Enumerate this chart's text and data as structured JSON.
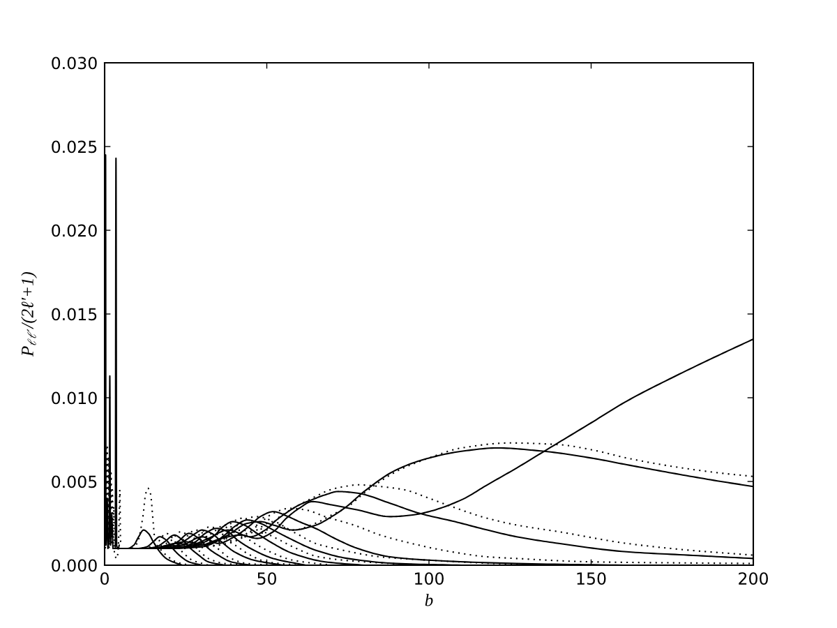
{
  "chart_data": {
    "type": "line",
    "xlabel": "b",
    "ylabel": "P$_{ℓℓ′}$/(2ℓ′+1)",
    "xlim": [
      0,
      200
    ],
    "ylim": [
      0,
      0.03
    ],
    "xticks": [
      0,
      50,
      100,
      150,
      200
    ],
    "yticks": [
      {
        "value": 0,
        "label": "0.000"
      },
      {
        "value": 0.005,
        "label": "0.005"
      },
      {
        "value": 0.01,
        "label": "0.010"
      },
      {
        "value": 0.015,
        "label": "0.015"
      },
      {
        "value": 0.02,
        "label": "0.020"
      },
      {
        "value": 0.025,
        "label": "0.025"
      },
      {
        "value": 0.03,
        "label": "0.030"
      }
    ],
    "series": [
      {
        "color": "#000000",
        "line_style": "solid",
        "x": [
          0.1,
          0.2,
          0.3,
          0.4,
          0.8,
          1.0,
          1.4,
          1.6,
          1.8,
          2.2,
          2.6,
          3.3,
          3.5,
          3.7,
          4.2,
          4.5
        ],
        "values": [
          0.0087,
          0.0015,
          0.0245,
          0.0012,
          0.004,
          0.001,
          0.002,
          0.0113,
          0.0012,
          0.003,
          0.001,
          0.001,
          0.0243,
          0.0012,
          0.001,
          0.0012
        ]
      },
      {
        "color": "#000000",
        "line_style": "dotted",
        "x": [
          0.2,
          0.4,
          0.6,
          0.8,
          1.0,
          1.2,
          1.4,
          1.6,
          1.8,
          2.0,
          2.2,
          2.4,
          2.6,
          2.8,
          3.0,
          3.8,
          4.2,
          4.5,
          4.7,
          4.9,
          5.2
        ],
        "values": [
          0.001,
          0.007,
          0.002,
          0.0072,
          0.0015,
          0.0065,
          0.001,
          0.006,
          0.0015,
          0.0055,
          0.0012,
          0.0045,
          0.001,
          0.0035,
          0.0008,
          0.0004,
          0.001,
          0.003,
          0.0045,
          0.0015,
          0.0012
        ]
      },
      {
        "color": "#000000",
        "line_style": "solid",
        "x": [
          3,
          7,
          9,
          10.5,
          12,
          13.5,
          15,
          17,
          19,
          21,
          24
        ],
        "values": [
          0.001,
          0.001,
          0.0012,
          0.0017,
          0.0021,
          0.0019,
          0.0014,
          0.0008,
          0.0004,
          0.0002,
          0.0
        ]
      },
      {
        "color": "#000000",
        "line_style": "solid",
        "x": [
          3,
          10,
          13,
          15,
          17,
          19,
          21,
          23,
          26,
          30
        ],
        "values": [
          0.001,
          0.001,
          0.0011,
          0.0014,
          0.0017,
          0.0015,
          0.001,
          0.0006,
          0.0002,
          0.0
        ]
      },
      {
        "color": "#000000",
        "line_style": "solid",
        "x": [
          3,
          12,
          16,
          18.5,
          21.5,
          24,
          26.5,
          29,
          32,
          37
        ],
        "values": [
          0.001,
          0.001,
          0.0011,
          0.0014,
          0.0018,
          0.0015,
          0.001,
          0.0006,
          0.0002,
          0.0
        ]
      },
      {
        "color": "#000000",
        "line_style": "solid",
        "x": [
          3,
          15,
          19,
          22.5,
          26,
          29,
          32,
          35,
          39,
          45
        ],
        "values": [
          0.001,
          0.001,
          0.0011,
          0.0014,
          0.0019,
          0.0016,
          0.001,
          0.0006,
          0.0002,
          0.0
        ]
      },
      {
        "color": "#000000",
        "line_style": "solid",
        "x": [
          3,
          15,
          21,
          25,
          28,
          30,
          33,
          36,
          40,
          46,
          55
        ],
        "values": [
          0.001,
          0.001,
          0.0011,
          0.0015,
          0.0019,
          0.0021,
          0.0019,
          0.0014,
          0.0008,
          0.0003,
          0.0
        ]
      },
      {
        "color": "#000000",
        "line_style": "solid",
        "x": [
          3,
          15,
          20,
          24,
          28,
          31,
          34.5,
          38,
          41,
          45,
          52,
          62
        ],
        "values": [
          0.001,
          0.001,
          0.0012,
          0.0011,
          0.0014,
          0.0019,
          0.0022,
          0.002,
          0.0015,
          0.001,
          0.0004,
          0.0
        ]
      },
      {
        "color": "#000000",
        "line_style": "solid",
        "x": [
          3,
          15,
          22,
          27,
          31,
          34,
          36.5,
          39.5,
          43,
          47,
          51,
          58,
          68,
          80
        ],
        "values": [
          0.001,
          0.001,
          0.0013,
          0.0012,
          0.0014,
          0.0018,
          0.0023,
          0.0026,
          0.0024,
          0.0019,
          0.0014,
          0.0007,
          0.0002,
          0.0
        ]
      },
      {
        "color": "#000000",
        "line_style": "solid",
        "x": [
          3,
          15,
          25,
          30,
          34,
          37,
          40,
          44,
          48,
          52,
          57,
          65,
          75,
          90,
          110
        ],
        "values": [
          0.001,
          0.001,
          0.0014,
          0.0012,
          0.0014,
          0.0018,
          0.0023,
          0.0027,
          0.0025,
          0.0021,
          0.0016,
          0.0009,
          0.0004,
          0.0001,
          0.0
        ]
      },
      {
        "color": "#000000",
        "line_style": "solid",
        "x": [
          3,
          15,
          24,
          30,
          35,
          40,
          45,
          48,
          52,
          56.6,
          60,
          65,
          72,
          78,
          88,
          100,
          127,
          160
        ],
        "values": [
          0.001,
          0.001,
          0.0012,
          0.0017,
          0.0013,
          0.0017,
          0.0024,
          0.0029,
          0.0032,
          0.0029,
          0.0026,
          0.0022,
          0.0015,
          0.001,
          0.0005,
          0.0003,
          0.0001,
          0.0
        ]
      },
      {
        "color": "#000000",
        "line_style": "solid",
        "x": [
          3,
          15,
          25,
          32,
          38,
          45,
          49.5,
          53,
          56.6,
          60,
          63.8,
          68,
          72,
          78,
          88,
          97,
          108,
          118,
          127,
          140,
          161,
          180,
          200
        ],
        "values": [
          0.001,
          0.001,
          0.0011,
          0.0016,
          0.0021,
          0.0017,
          0.0021,
          0.0027,
          0.0032,
          0.0036,
          0.0039,
          0.0042,
          0.0044,
          0.0043,
          0.0037,
          0.0031,
          0.0026,
          0.0021,
          0.0017,
          0.0013,
          0.0008,
          0.0006,
          0.0004
        ]
      },
      {
        "color": "#000000",
        "line_style": "solid",
        "x": [
          3,
          20,
          30,
          38,
          44,
          48,
          52,
          58,
          65.2,
          70,
          74.6,
          80,
          90,
          100,
          110,
          121,
          135.5,
          150,
          161,
          175,
          190,
          200
        ],
        "values": [
          0.001,
          0.001,
          0.0011,
          0.0018,
          0.0025,
          0.0026,
          0.0024,
          0.0021,
          0.0024,
          0.0029,
          0.0035,
          0.0044,
          0.0057,
          0.0064,
          0.0068,
          0.007,
          0.0068,
          0.0064,
          0.006,
          0.0055,
          0.005,
          0.0047
        ]
      },
      {
        "color": "#000000",
        "line_style": "solid",
        "x": [
          3,
          20,
          30,
          36,
          42,
          47,
          52,
          56,
          60,
          64,
          70,
          78,
          88,
          95,
          100,
          110,
          118,
          127,
          135.5,
          150,
          161,
          175,
          190,
          200
        ],
        "values": [
          0.001,
          0.001,
          0.0012,
          0.0016,
          0.0018,
          0.0016,
          0.002,
          0.0028,
          0.0034,
          0.0038,
          0.0036,
          0.0033,
          0.0029,
          0.003,
          0.0032,
          0.0039,
          0.0048,
          0.0058,
          0.0068,
          0.0085,
          0.0098,
          0.0112,
          0.0126,
          0.0135
        ]
      },
      {
        "color": "#000000",
        "line_style": "dotted",
        "x": [
          3,
          8,
          10,
          11.8,
          12.6,
          13.3,
          14.1,
          15,
          15.5,
          17,
          19,
          22,
          26
        ],
        "values": [
          0.001,
          0.001,
          0.0013,
          0.0029,
          0.0042,
          0.0046,
          0.0043,
          0.0025,
          0.0015,
          0.001,
          0.0006,
          0.0002,
          0.0
        ]
      },
      {
        "color": "#000000",
        "line_style": "dotted",
        "x": [
          3,
          12,
          16,
          19,
          21,
          23,
          25,
          27,
          32
        ],
        "values": [
          0.001,
          0.001,
          0.0013,
          0.0019,
          0.0016,
          0.001,
          0.0006,
          0.0003,
          0.0
        ]
      },
      {
        "color": "#000000",
        "line_style": "dotted",
        "x": [
          3,
          14,
          20,
          23.5,
          26,
          28,
          30,
          32,
          37,
          44
        ],
        "values": [
          0.001,
          0.001,
          0.0014,
          0.002,
          0.0017,
          0.0011,
          0.0007,
          0.0004,
          0.0001,
          0.0
        ]
      },
      {
        "color": "#000000",
        "line_style": "dotted",
        "x": [
          3,
          16,
          24,
          28,
          31,
          33,
          35.5,
          38,
          44,
          52
        ],
        "values": [
          0.001,
          0.001,
          0.0015,
          0.0021,
          0.0018,
          0.0013,
          0.0009,
          0.0005,
          0.0001,
          0.0
        ]
      },
      {
        "color": "#000000",
        "line_style": "dotted",
        "x": [
          3,
          18,
          25,
          29,
          32.5,
          35,
          38,
          41,
          44,
          50,
          60
        ],
        "values": [
          0.001,
          0.001,
          0.0013,
          0.0018,
          0.0023,
          0.0021,
          0.0015,
          0.0011,
          0.0007,
          0.0002,
          0.0
        ]
      },
      {
        "color": "#000000",
        "line_style": "dotted",
        "x": [
          3,
          20,
          27,
          33,
          37,
          40,
          44,
          48,
          51,
          58,
          70
        ],
        "values": [
          0.001,
          0.001,
          0.0013,
          0.0019,
          0.0024,
          0.0022,
          0.0016,
          0.0011,
          0.0008,
          0.0003,
          0.0
        ]
      },
      {
        "color": "#000000",
        "line_style": "dotted",
        "x": [
          3,
          20,
          30,
          36,
          39,
          42,
          46,
          50,
          54,
          58,
          66,
          80,
          100
        ],
        "values": [
          0.001,
          0.001,
          0.0014,
          0.002,
          0.0025,
          0.0028,
          0.0025,
          0.0019,
          0.0015,
          0.0011,
          0.0005,
          0.0002,
          0.0
        ]
      },
      {
        "color": "#000000",
        "line_style": "dotted",
        "x": [
          3,
          20,
          30,
          36,
          41,
          44,
          47,
          51,
          55,
          60,
          65,
          71,
          85,
          100,
          121,
          150,
          200
        ],
        "values": [
          0.001,
          0.001,
          0.0012,
          0.0016,
          0.0024,
          0.0028,
          0.0029,
          0.0027,
          0.0023,
          0.0018,
          0.0013,
          0.001,
          0.0005,
          0.0003,
          0.0001,
          0.0,
          0.0
        ]
      },
      {
        "color": "#000000",
        "line_style": "dotted",
        "x": [
          3,
          20,
          32,
          40,
          46,
          52,
          57,
          62,
          68,
          76.8,
          85,
          92.5,
          107,
          118,
          127,
          150,
          200
        ],
        "values": [
          0.001,
          0.001,
          0.0013,
          0.0015,
          0.0022,
          0.0031,
          0.0034,
          0.0033,
          0.0029,
          0.0024,
          0.0018,
          0.0014,
          0.0008,
          0.0005,
          0.0004,
          0.0002,
          0.0001
        ]
      },
      {
        "color": "#000000",
        "line_style": "dotted",
        "x": [
          3,
          20,
          35,
          42,
          48,
          54,
          60,
          65,
          69.5,
          74,
          78,
          85,
          92.5,
          100,
          107,
          118,
          127,
          140,
          161,
          180,
          200
        ],
        "values": [
          0.001,
          0.001,
          0.0014,
          0.0021,
          0.0019,
          0.0029,
          0.0036,
          0.0041,
          0.0045,
          0.0047,
          0.0048,
          0.0047,
          0.0045,
          0.004,
          0.0035,
          0.0028,
          0.0024,
          0.002,
          0.0013,
          0.0009,
          0.0006
        ]
      },
      {
        "color": "#000000",
        "line_style": "dotted",
        "x": [
          3,
          25,
          38,
          46,
          52,
          58,
          65,
          70,
          75,
          80,
          90,
          100,
          110,
          125,
          140,
          150,
          161,
          175,
          190,
          200
        ],
        "values": [
          0.001,
          0.001,
          0.0013,
          0.002,
          0.0026,
          0.0021,
          0.0025,
          0.003,
          0.0035,
          0.0043,
          0.0056,
          0.0064,
          0.007,
          0.0073,
          0.0072,
          0.0069,
          0.0064,
          0.0059,
          0.0055,
          0.0053
        ]
      }
    ]
  }
}
